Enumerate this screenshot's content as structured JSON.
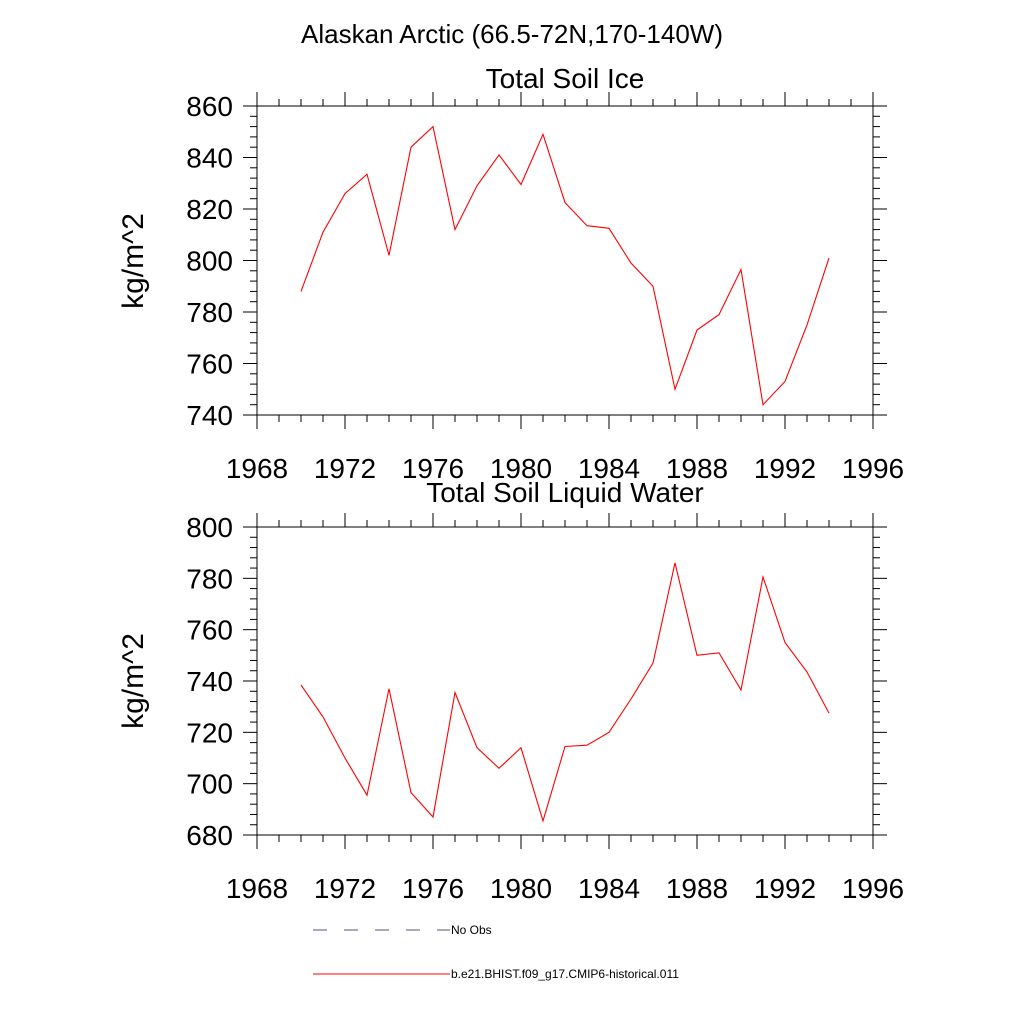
{
  "figure": {
    "suptitle": "Alaskan Arctic (66.5-72N,170-140W)"
  },
  "chart_data": [
    {
      "type": "line",
      "title": "Total Soil Ice",
      "xlabel": "",
      "ylabel": "kg/m^2",
      "xlim": [
        1968,
        1996
      ],
      "ylim": [
        740,
        860
      ],
      "xticks": [
        1968,
        1972,
        1976,
        1980,
        1984,
        1988,
        1992,
        1996
      ],
      "yticks": [
        740,
        760,
        780,
        800,
        820,
        840,
        860
      ],
      "grid": false,
      "series": [
        {
          "name": "b.e21.BHIST.f09_g17.CMIP6-historical.011",
          "color": "#ff0000",
          "x": [
            1970,
            1971,
            1972,
            1973,
            1974,
            1975,
            1976,
            1977,
            1978,
            1979,
            1980,
            1981,
            1982,
            1983,
            1984,
            1985,
            1986,
            1987,
            1988,
            1989,
            1990,
            1991,
            1992,
            1993,
            1994
          ],
          "y": [
            788,
            811,
            826,
            833.5,
            802,
            844,
            852,
            812,
            829,
            841,
            829.5,
            849,
            822.5,
            813.5,
            812.5,
            799,
            790,
            750,
            773,
            779,
            796.5,
            744,
            753,
            775,
            801
          ]
        }
      ]
    },
    {
      "type": "line",
      "title": "Total Soil Liquid Water",
      "xlabel": "",
      "ylabel": "kg/m^2",
      "xlim": [
        1968,
        1996
      ],
      "ylim": [
        680,
        800
      ],
      "xticks": [
        1968,
        1972,
        1976,
        1980,
        1984,
        1988,
        1992,
        1996
      ],
      "yticks": [
        680,
        700,
        720,
        740,
        760,
        780,
        800
      ],
      "grid": false,
      "series": [
        {
          "name": "b.e21.BHIST.f09_g17.CMIP6-historical.011",
          "color": "#ff0000",
          "x": [
            1970,
            1971,
            1972,
            1973,
            1974,
            1975,
            1976,
            1977,
            1978,
            1979,
            1980,
            1981,
            1982,
            1983,
            1984,
            1985,
            1986,
            1987,
            1988,
            1989,
            1990,
            1991,
            1992,
            1993,
            1994
          ],
          "y": [
            738.5,
            726,
            710,
            695.5,
            737,
            696.5,
            687,
            735.5,
            714,
            706,
            714,
            685.5,
            714.5,
            715,
            720,
            733,
            747,
            786,
            750,
            751,
            736.5,
            780.5,
            755,
            743.5,
            727.5
          ]
        }
      ]
    }
  ],
  "legend": {
    "placement": "bottom",
    "items": [
      {
        "label": "No Obs",
        "style": "dashed",
        "color": "#555577"
      },
      {
        "label": "b.e21.BHIST.f09_g17.CMIP6-historical.011",
        "style": "solid",
        "color": "#ff0000"
      }
    ]
  }
}
